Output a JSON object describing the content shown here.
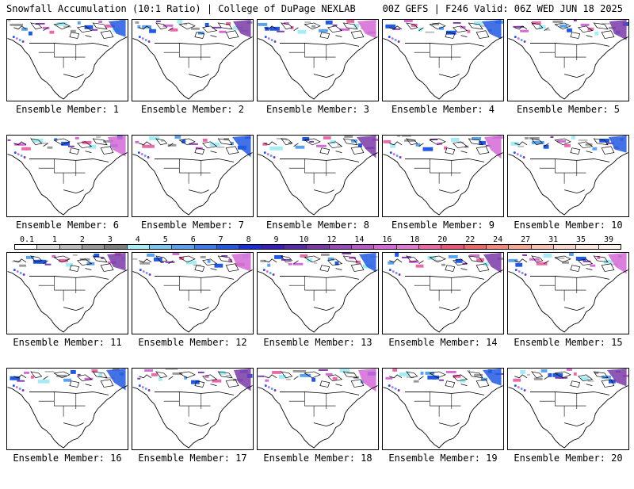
{
  "header": {
    "left": "Snowfall Accumulation (10:1 Ratio) | College of DuPage NEXLAB",
    "right": "00Z GEFS | F246 Valid: 06Z WED JUN 18 2025"
  },
  "members": [
    "Ensemble Member: 1",
    "Ensemble Member: 2",
    "Ensemble Member: 3",
    "Ensemble Member: 4",
    "Ensemble Member: 5",
    "Ensemble Member: 6",
    "Ensemble Member: 7",
    "Ensemble Member: 8",
    "Ensemble Member: 9",
    "Ensemble Member: 10",
    "Ensemble Member: 11",
    "Ensemble Member: 12",
    "Ensemble Member: 13",
    "Ensemble Member: 14",
    "Ensemble Member: 15",
    "Ensemble Member: 16",
    "Ensemble Member: 17",
    "Ensemble Member: 18",
    "Ensemble Member: 19",
    "Ensemble Member: 20"
  ],
  "colorbar": {
    "ticks": [
      "0.1",
      "1",
      "2",
      "3",
      "4",
      "5",
      "6",
      "7",
      "8",
      "9",
      "10",
      "12",
      "14",
      "16",
      "18",
      "20",
      "22",
      "24",
      "27",
      "31",
      "35",
      "39"
    ],
    "colors": [
      "#ffffff",
      "#d9d9d9",
      "#bdbdbd",
      "#9a9a9a",
      "#7f7f7f",
      "#a6ecf5",
      "#7ac8f0",
      "#5aa2eb",
      "#3c7ce6",
      "#2159e0",
      "#1a2ed6",
      "#3a1fb8",
      "#5a2aa8",
      "#7a3aa8",
      "#9a4ab8",
      "#b85ac8",
      "#d36ad6",
      "#e07ad0",
      "#e86aa8",
      "#e8567a",
      "#e86a6a",
      "#f08a80",
      "#f4a898",
      "#f6c2b4",
      "#f9d8cc",
      "#fce8dc",
      "#fff4ec"
    ]
  }
}
